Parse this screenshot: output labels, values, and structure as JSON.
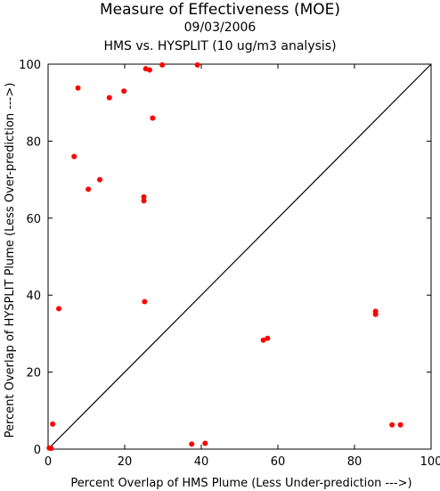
{
  "chart_data": {
    "type": "scatter",
    "title": "Measure of Effectiveness (MOE)",
    "subtitle_date": "09/03/2006",
    "subtitle": "HMS vs. HYSPLIT  (10 ug/m3 analysis)",
    "xlabel": "Percent Overlap of HMS Plume (Less Under-prediction --->)",
    "ylabel": "Percent Overlap of HYSPLIT Plume (Less Over-prediction --->)",
    "xlim": [
      0,
      100
    ],
    "ylim": [
      0,
      100
    ],
    "xticks": [
      0,
      20,
      40,
      60,
      80,
      100
    ],
    "yticks": [
      0,
      20,
      40,
      60,
      80,
      100
    ],
    "grid": false,
    "reference_line": "diagonal 1:1",
    "marker_color": "#ff0000",
    "line_color": "#000000",
    "points": [
      {
        "x": 0.3,
        "y": 0.3
      },
      {
        "x": 0.8,
        "y": 0.2
      },
      {
        "x": 1.2,
        "y": 6.5
      },
      {
        "x": 2.8,
        "y": 36.5
      },
      {
        "x": 6.8,
        "y": 76
      },
      {
        "x": 7.8,
        "y": 93.8
      },
      {
        "x": 10.5,
        "y": 67.5
      },
      {
        "x": 13.5,
        "y": 70
      },
      {
        "x": 16,
        "y": 91.3
      },
      {
        "x": 19.8,
        "y": 93
      },
      {
        "x": 25,
        "y": 65.5
      },
      {
        "x": 25,
        "y": 64.5
      },
      {
        "x": 25.2,
        "y": 38.3
      },
      {
        "x": 25.5,
        "y": 98.8
      },
      {
        "x": 26.5,
        "y": 98.5
      },
      {
        "x": 27.3,
        "y": 86
      },
      {
        "x": 29.8,
        "y": 99.8
      },
      {
        "x": 37.5,
        "y": 1.3
      },
      {
        "x": 39,
        "y": 99.8
      },
      {
        "x": 41,
        "y": 1.5
      },
      {
        "x": 56.2,
        "y": 28.3
      },
      {
        "x": 57.3,
        "y": 28.8
      },
      {
        "x": 85.5,
        "y": 35.8
      },
      {
        "x": 85.5,
        "y": 35
      },
      {
        "x": 89.8,
        "y": 6.3
      },
      {
        "x": 92,
        "y": 6.3
      }
    ]
  }
}
